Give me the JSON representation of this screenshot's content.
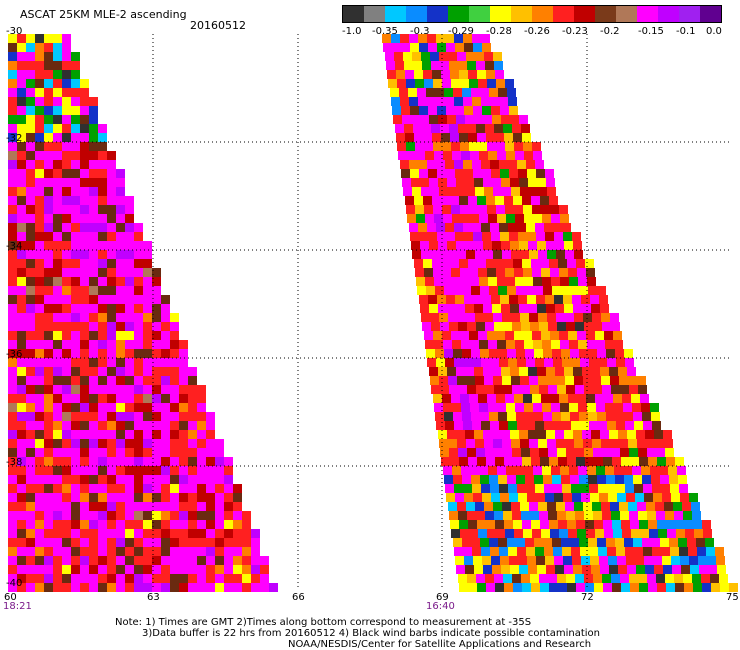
{
  "header": {
    "product": "ASCAT 25KM MLE-2 ascending",
    "date": "20160512"
  },
  "colorbar": {
    "colors": [
      "#303030",
      "#808080",
      "#00c8ff",
      "#0a8cff",
      "#1432c8",
      "#00a000",
      "#40d040",
      "#ffff00",
      "#ffc000",
      "#ff8000",
      "#ff2020",
      "#c00000",
      "#7a3a1a",
      "#b07858",
      "#ff00ff",
      "#c000ff",
      "#a020f0",
      "#600090"
    ],
    "labels": [
      "-1.0",
      "-0.35",
      "-0.3",
      "-0.29",
      "-0.28",
      "-0.26",
      "-0.23",
      "-0.2",
      "-0.15",
      "-0.1",
      "0.0"
    ]
  },
  "axes": {
    "lat_labels": [
      "-30",
      "-32",
      "-34",
      "-36",
      "-38",
      "-40"
    ],
    "lon_labels_left": [
      "60",
      "63",
      "66"
    ],
    "lon_labels_right": [
      "69",
      "72",
      "75"
    ],
    "time_left": "18:21",
    "time_right": "16:40"
  },
  "notes": {
    "line1": "Note: 1) Times are GMT 2)Times along bottom correspond to measurement at -35S",
    "line2": "3)Data buffer is 22 hrs from 20160512 4) Black wind barbs indicate possible contamination",
    "line3": "NOAA/NESDIS/Center for Satellite Applications and Research"
  }
}
